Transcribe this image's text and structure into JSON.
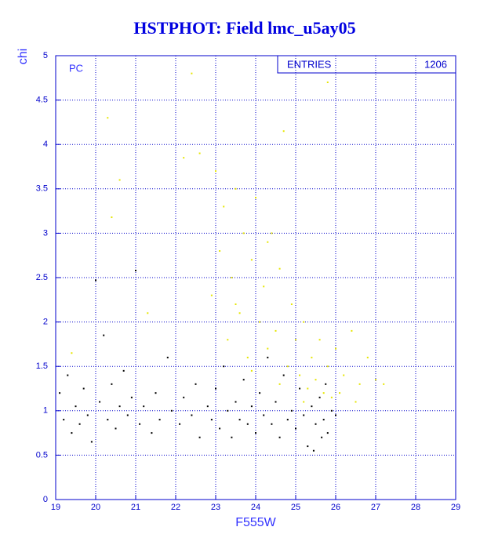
{
  "chart_data": {
    "type": "scatter",
    "title": "HSTPHOT: Field lmc_u5ay05",
    "xlabel": "F555W",
    "ylabel": "chi",
    "annotation": "PC",
    "stats": {
      "label": "ENTRIES",
      "value": 1206
    },
    "xlim": [
      19,
      29
    ],
    "ylim": [
      0,
      5
    ],
    "xticks": [
      19,
      20,
      21,
      22,
      23,
      24,
      25,
      26,
      27,
      28,
      29
    ],
    "yticks": [
      0,
      0.5,
      1,
      1.5,
      2,
      2.5,
      3,
      3.5,
      4,
      4.5,
      5
    ],
    "grid": true,
    "series": [
      {
        "color": "#000000",
        "x": [
          19.1,
          19.2,
          19.3,
          19.4,
          19.5,
          19.6,
          19.7,
          19.8,
          19.9,
          20.0,
          20.1,
          20.2,
          20.3,
          20.4,
          20.5,
          20.6,
          20.7,
          20.8,
          20.9,
          21.0,
          21.1,
          21.2,
          21.4,
          21.5,
          21.6,
          21.8,
          21.9,
          22.1,
          22.2,
          22.4,
          22.5,
          22.6,
          22.8,
          22.9,
          23.0,
          23.1,
          23.2,
          23.3,
          23.4,
          23.5,
          23.6,
          23.7,
          23.8,
          23.9,
          24.0,
          24.1,
          24.2,
          24.3,
          24.4,
          24.5,
          24.6,
          24.7,
          24.8,
          24.9,
          25.0,
          25.1,
          25.2,
          25.3,
          25.4,
          25.5,
          25.6,
          25.7,
          25.8,
          25.9,
          26.0,
          25.75,
          25.65,
          25.45
        ],
        "y": [
          1.2,
          0.9,
          1.4,
          0.75,
          1.05,
          0.85,
          1.25,
          0.95,
          0.65,
          2.47,
          1.1,
          1.85,
          0.9,
          1.3,
          0.8,
          1.05,
          1.45,
          0.95,
          1.15,
          2.58,
          0.85,
          1.05,
          0.75,
          1.2,
          0.9,
          1.6,
          1.0,
          0.85,
          1.15,
          0.95,
          1.3,
          0.7,
          1.05,
          0.9,
          1.25,
          0.8,
          1.5,
          1.0,
          0.7,
          1.1,
          0.9,
          1.35,
          0.85,
          1.05,
          0.75,
          1.2,
          0.95,
          1.6,
          0.85,
          1.1,
          0.7,
          1.4,
          0.9,
          1.0,
          0.8,
          1.25,
          0.95,
          0.6,
          1.05,
          0.85,
          1.15,
          0.9,
          0.75,
          1.0,
          0.95,
          1.3,
          0.7,
          0.55
        ]
      },
      {
        "color": "#e6e600",
        "x": [
          19.4,
          20.3,
          20.6,
          20.4,
          21.3,
          22.2,
          22.4,
          22.6,
          22.9,
          23.0,
          23.1,
          23.2,
          23.3,
          23.4,
          23.5,
          23.6,
          23.7,
          23.8,
          23.9,
          24.0,
          24.1,
          24.2,
          24.3,
          24.4,
          24.5,
          24.6,
          24.7,
          24.8,
          24.9,
          25.0,
          25.1,
          25.2,
          25.3,
          25.4,
          25.5,
          25.6,
          25.7,
          25.8,
          25.9,
          26.0,
          26.2,
          26.4,
          26.6,
          26.8,
          27.0,
          27.2,
          25.8,
          26.5,
          24.6,
          25.2,
          23.9,
          24.3,
          23.5,
          26.1
        ],
        "y": [
          1.65,
          4.3,
          3.6,
          3.18,
          2.1,
          3.85,
          4.8,
          3.9,
          2.3,
          3.7,
          2.8,
          3.3,
          1.8,
          2.5,
          3.5,
          2.1,
          3.0,
          1.6,
          2.7,
          3.4,
          2.0,
          2.4,
          1.7,
          3.0,
          1.9,
          2.6,
          4.15,
          1.5,
          2.2,
          1.8,
          1.4,
          2.0,
          1.25,
          1.6,
          1.35,
          1.8,
          1.2,
          1.5,
          1.15,
          1.7,
          1.4,
          1.9,
          1.3,
          1.6,
          1.35,
          1.3,
          4.7,
          1.1,
          1.3,
          1.1,
          1.45,
          2.9,
          2.2,
          1.2
        ]
      }
    ]
  }
}
